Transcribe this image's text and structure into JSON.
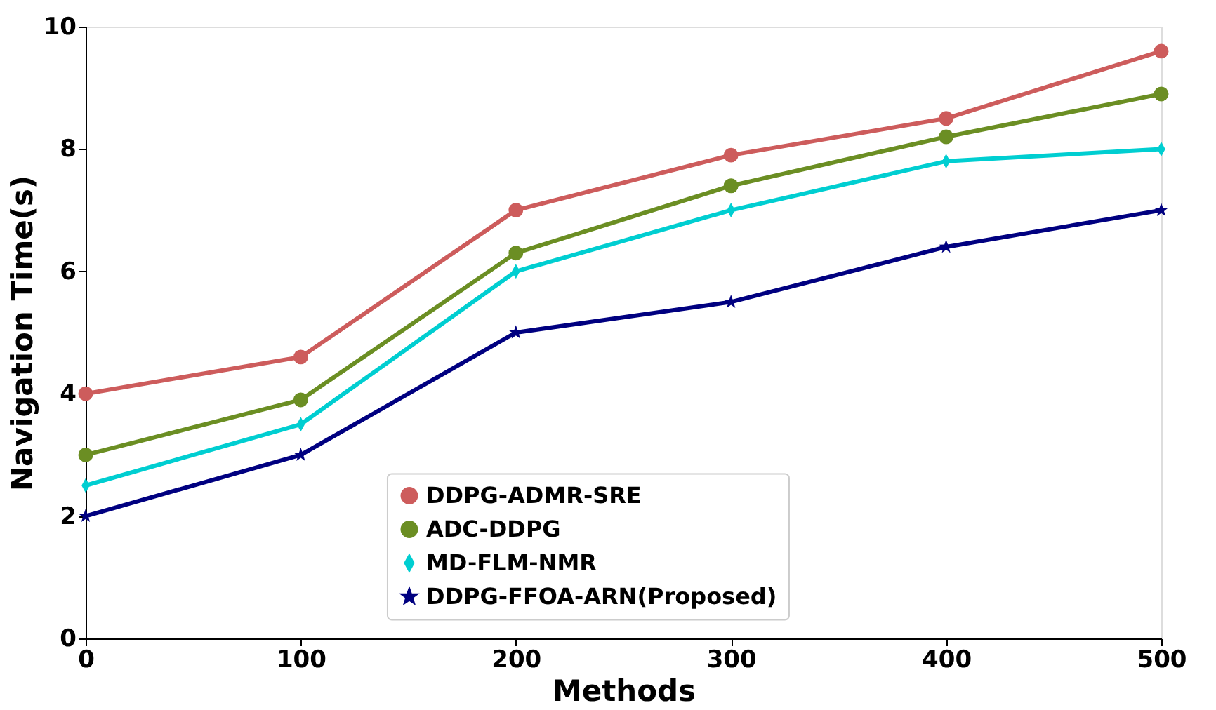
{
  "chart_data": {
    "type": "line",
    "xlabel": "Methods",
    "ylabel": "Navigation Time(s)",
    "x": [
      0,
      100,
      200,
      300,
      400,
      500
    ],
    "xlim": [
      0,
      500
    ],
    "xticks": [
      0,
      100,
      200,
      300,
      400,
      500
    ],
    "ylim": [
      0,
      10
    ],
    "yticks": [
      0,
      2,
      4,
      6,
      8,
      10
    ],
    "grid": false,
    "legend": "bottom",
    "line_style": "solid",
    "series": [
      {
        "name": "DDPG-ADMR-SRE",
        "color": "#cd5c5c",
        "marker": "circle",
        "values": [
          4.0,
          4.6,
          7.0,
          7.9,
          8.5,
          9.6
        ]
      },
      {
        "name": "ADC-DDPG",
        "color": "#6b8e23",
        "marker": "circle",
        "values": [
          3.0,
          3.9,
          6.3,
          7.4,
          8.2,
          8.9
        ]
      },
      {
        "name": "MD-FLM-NMR",
        "color": "#00ced1",
        "marker": "diamond",
        "values": [
          2.5,
          3.5,
          6.0,
          7.0,
          7.8,
          8.0
        ]
      },
      {
        "name": "DDPG-FFOA-ARN(Proposed)",
        "color": "#000080",
        "marker": "star",
        "values": [
          2.0,
          3.0,
          5.0,
          5.5,
          6.4,
          7.0
        ]
      }
    ]
  }
}
